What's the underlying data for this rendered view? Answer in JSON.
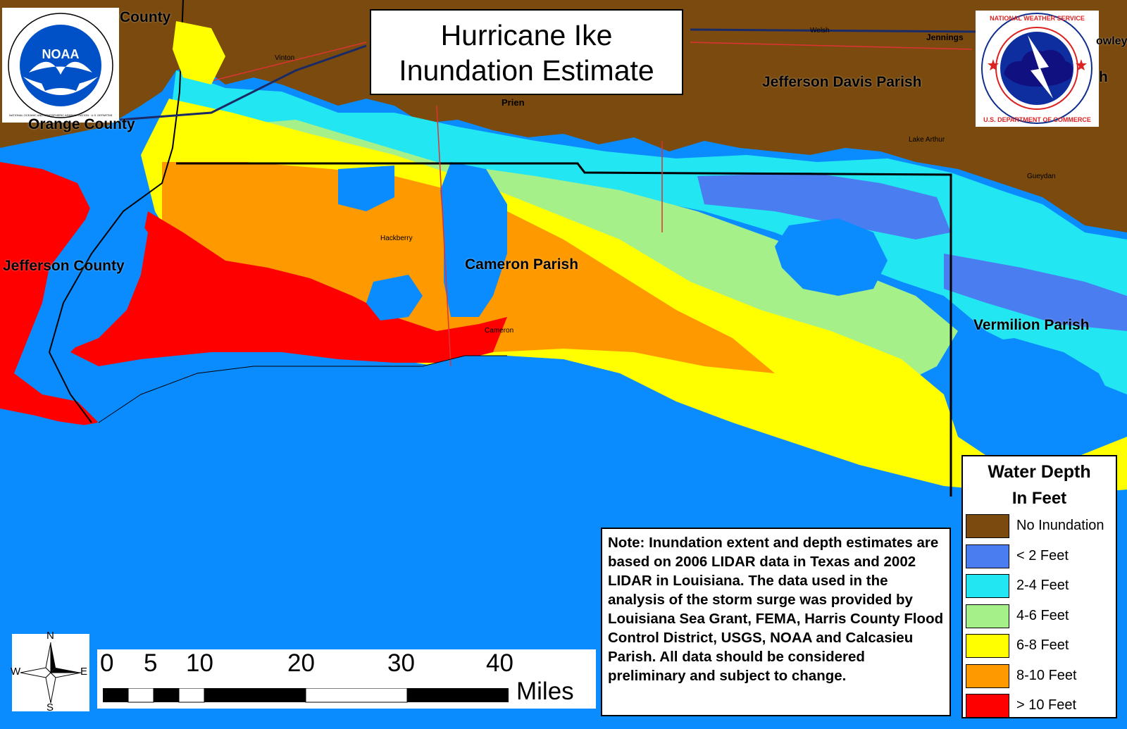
{
  "title": {
    "line1": "Hurricane Ike",
    "line2": "Inundation Estimate"
  },
  "logos": {
    "noaa": {
      "emblem_text": "NOAA",
      "ring_text": "NATIONAL OCEANIC AND ATMOSPHERIC ADMINISTRATION · U.S. DEPARTMENT OF COMMERCE",
      "icon": "noaa-logo-icon"
    },
    "nws": {
      "ring_top": "NATIONAL WEATHER SERVICE",
      "ring_bottom": "U.S. DEPARTMENT OF COMMERCE",
      "icon": "nws-logo-icon"
    }
  },
  "regions": {
    "orange_county_partial": "County",
    "orange_county": "Orange County",
    "jefferson_county": "Jefferson County",
    "jefferson_davis_parish": "Jefferson Davis Parish",
    "cameron_parish": "Cameron Parish",
    "vermilion_parish": "Vermilion Parish",
    "parish_partial": "h",
    "rowley_partial": "owley"
  },
  "towns": {
    "vinton": "Vinton",
    "welsh": "Welsh",
    "jennings": "Jennings",
    "prien": "Prien",
    "hackberry": "Hackberry",
    "cameron": "Cameron",
    "lake_arthur": "Lake Arthur",
    "gueydan": "Gueydan"
  },
  "legend": {
    "title": "Water Depth",
    "subtitle": "In Feet",
    "items": [
      {
        "label": "No Inundation",
        "color": "#7a4a0e"
      },
      {
        "label": "< 2 Feet",
        "color": "#4a7ef0"
      },
      {
        "label": "2-4 Feet",
        "color": "#22e6f2"
      },
      {
        "label": "4-6 Feet",
        "color": "#a6f08a"
      },
      {
        "label": "6-8 Feet",
        "color": "#ffff00"
      },
      {
        "label": "8-10 Feet",
        "color": "#ff9900"
      },
      {
        "label": "> 10 Feet",
        "color": "#ff0000"
      }
    ]
  },
  "water_color": "#0a8cff",
  "land_color": "#7a4a0e",
  "note": "Note: Inundation extent and depth estimates  are based on 2006 LIDAR data in Texas and 2002 LIDAR in Louisiana. The data used in the analysis of the storm surge was provided by Louisiana Sea Grant, FEMA, Harris County Flood Control District, USGS, NOAA and Calcasieu Parish. All data should be considered preliminary and subject to change.",
  "compass": {
    "n": "N",
    "s": "S",
    "e": "E",
    "w": "W",
    "icon": "compass-rose-icon"
  },
  "scale_bar": {
    "ticks": [
      "0",
      "5",
      "10",
      "20",
      "30",
      "40"
    ],
    "unit": "Miles"
  }
}
